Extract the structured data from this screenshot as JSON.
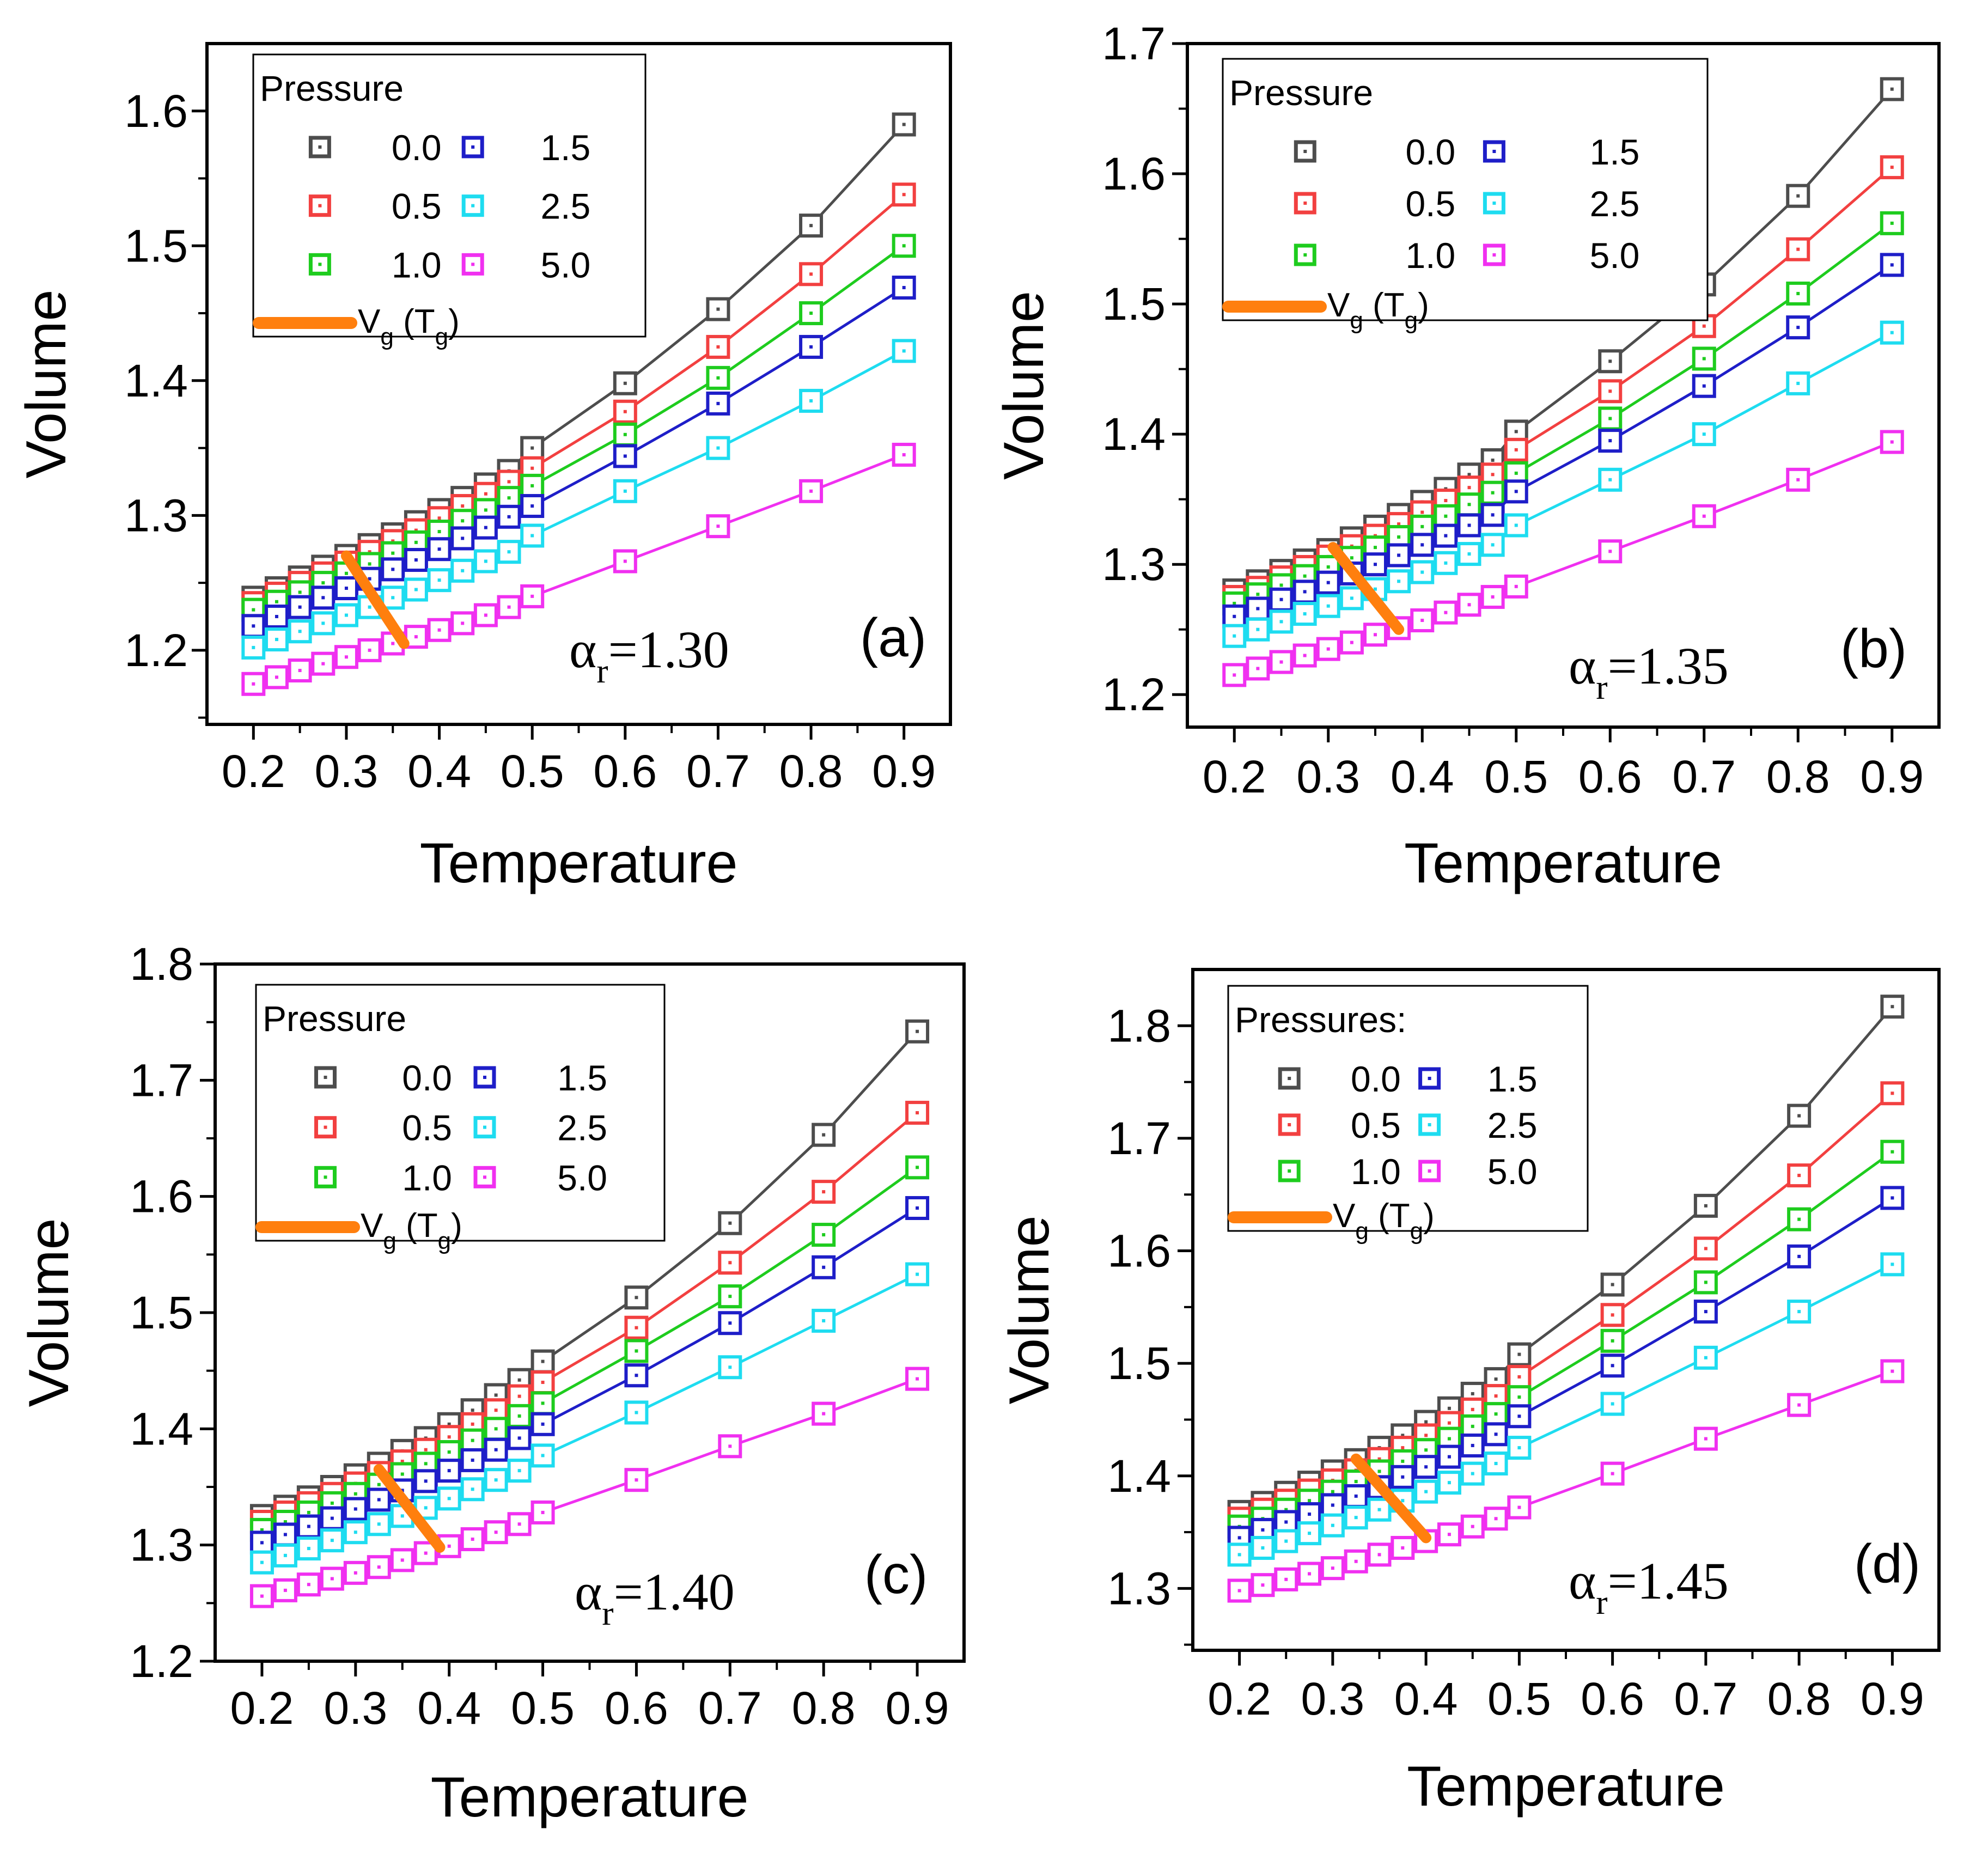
{
  "figure": {
    "series_colors": [
      "#4d4d4d",
      "#f24040",
      "#1ecc1e",
      "#1e1ec8",
      "#1edcf0",
      "#f030f0"
    ],
    "tg_color": "#ff7f0e"
  },
  "chart_data": [
    {
      "type": "line",
      "panel": "(a)",
      "alpha_label": "α",
      "alpha_sub": "r",
      "alpha_value": "=1.30",
      "xlabel": "Temperature",
      "ylabel": "Volume",
      "xlim": [
        0.15,
        0.95
      ],
      "ylim": [
        1.145,
        1.65
      ],
      "xticks": [
        "0.2",
        "0.3",
        "0.4",
        "0.5",
        "0.6",
        "0.7",
        "0.8",
        "0.9"
      ],
      "yticks": [
        "1.2",
        "1.3",
        "1.4",
        "1.5",
        "1.6"
      ],
      "legend_title": "Pressure",
      "tg_label": "V",
      "tg_sub1": "g",
      "tg_mid": " (T",
      "tg_sub2": "g",
      "tg_end": ")",
      "x": [
        0.2,
        0.225,
        0.25,
        0.275,
        0.3,
        0.325,
        0.35,
        0.375,
        0.4,
        0.425,
        0.45,
        0.475,
        0.5,
        0.6,
        0.7,
        0.8,
        0.9
      ],
      "series": [
        {
          "name": "0.0",
          "values": [
            1.239,
            1.246,
            1.254,
            1.262,
            1.27,
            1.278,
            1.286,
            1.295,
            1.304,
            1.313,
            1.323,
            1.333,
            1.35,
            1.398,
            1.453,
            1.515,
            1.59
          ]
        },
        {
          "name": "0.5",
          "values": [
            1.235,
            1.242,
            1.25,
            1.257,
            1.265,
            1.273,
            1.281,
            1.289,
            1.298,
            1.307,
            1.316,
            1.325,
            1.335,
            1.377,
            1.425,
            1.479,
            1.538
          ]
        },
        {
          "name": "1.0",
          "values": [
            1.23,
            1.236,
            1.243,
            1.25,
            1.257,
            1.264,
            1.272,
            1.28,
            1.288,
            1.296,
            1.304,
            1.313,
            1.322,
            1.36,
            1.402,
            1.45,
            1.5
          ]
        },
        {
          "name": "1.5",
          "values": [
            1.218,
            1.225,
            1.232,
            1.239,
            1.246,
            1.253,
            1.26,
            1.267,
            1.275,
            1.283,
            1.291,
            1.299,
            1.307,
            1.344,
            1.383,
            1.425,
            1.469
          ]
        },
        {
          "name": "2.5",
          "values": [
            1.202,
            1.208,
            1.214,
            1.22,
            1.226,
            1.232,
            1.239,
            1.245,
            1.252,
            1.259,
            1.266,
            1.273,
            1.285,
            1.318,
            1.35,
            1.385,
            1.422
          ]
        },
        {
          "name": "5.0",
          "values": [
            1.175,
            1.18,
            1.185,
            1.19,
            1.195,
            1.2,
            1.205,
            1.21,
            1.215,
            1.22,
            1.226,
            1.232,
            1.24,
            1.266,
            1.292,
            1.318,
            1.345
          ]
        }
      ],
      "tg_line": {
        "x": [
          0.3,
          0.362
        ],
        "y": [
          1.27,
          1.205
        ]
      }
    },
    {
      "type": "line",
      "panel": "(b)",
      "alpha_label": "α",
      "alpha_sub": "r",
      "alpha_value": "=1.35",
      "xlabel": "Temperature",
      "ylabel": "Volume",
      "xlim": [
        0.15,
        0.95
      ],
      "ylim": [
        1.175,
        1.7
      ],
      "xticks": [
        "0.2",
        "0.3",
        "0.4",
        "0.5",
        "0.6",
        "0.7",
        "0.8",
        "0.9"
      ],
      "yticks": [
        "1.2",
        "1.3",
        "1.4",
        "1.5",
        "1.6",
        "1.7"
      ],
      "legend_title": "Pressure",
      "tg_label": "V",
      "tg_sub1": "g",
      "tg_mid": " (T",
      "tg_sub2": "g",
      "tg_end": ")",
      "x": [
        0.2,
        0.225,
        0.25,
        0.275,
        0.3,
        0.325,
        0.35,
        0.375,
        0.4,
        0.425,
        0.45,
        0.475,
        0.5,
        0.6,
        0.7,
        0.8,
        0.9
      ],
      "series": [
        {
          "name": "0.0",
          "values": [
            1.28,
            1.287,
            1.295,
            1.303,
            1.311,
            1.32,
            1.329,
            1.338,
            1.348,
            1.358,
            1.369,
            1.38,
            1.402,
            1.456,
            1.515,
            1.583,
            1.665
          ]
        },
        {
          "name": "0.5",
          "values": [
            1.275,
            1.282,
            1.29,
            1.298,
            1.306,
            1.314,
            1.322,
            1.331,
            1.34,
            1.349,
            1.359,
            1.369,
            1.388,
            1.433,
            1.483,
            1.542,
            1.605
          ]
        },
        {
          "name": "1.0",
          "values": [
            1.27,
            1.277,
            1.284,
            1.291,
            1.298,
            1.305,
            1.313,
            1.321,
            1.329,
            1.337,
            1.346,
            1.355,
            1.37,
            1.412,
            1.458,
            1.508,
            1.562
          ]
        },
        {
          "name": "1.5",
          "values": [
            1.26,
            1.266,
            1.273,
            1.279,
            1.286,
            1.293,
            1.3,
            1.307,
            1.315,
            1.322,
            1.33,
            1.338,
            1.356,
            1.395,
            1.437,
            1.482,
            1.53
          ]
        },
        {
          "name": "2.5",
          "values": [
            1.245,
            1.25,
            1.256,
            1.262,
            1.268,
            1.274,
            1.281,
            1.287,
            1.294,
            1.301,
            1.308,
            1.315,
            1.33,
            1.365,
            1.4,
            1.439,
            1.478
          ]
        },
        {
          "name": "5.0",
          "values": [
            1.215,
            1.22,
            1.225,
            1.23,
            1.235,
            1.24,
            1.246,
            1.251,
            1.257,
            1.263,
            1.269,
            1.275,
            1.283,
            1.31,
            1.337,
            1.365,
            1.394
          ]
        }
      ],
      "tg_line": {
        "x": [
          0.305,
          0.375
        ],
        "y": [
          1.313,
          1.25
        ]
      }
    },
    {
      "type": "line",
      "panel": "(c)",
      "alpha_label": "α",
      "alpha_sub": "r",
      "alpha_value": "=1.40",
      "xlabel": "Temperature",
      "ylabel": "Volume",
      "xlim": [
        0.15,
        0.95
      ],
      "ylim": [
        1.2,
        1.8
      ],
      "xticks": [
        "0.2",
        "0.3",
        "0.4",
        "0.5",
        "0.6",
        "0.7",
        "0.8",
        "0.9"
      ],
      "yticks": [
        "1.2",
        "1.3",
        "1.4",
        "1.5",
        "1.6",
        "1.7",
        "1.8"
      ],
      "legend_title": "Pressure",
      "tg_label": "V",
      "tg_sub1": "g",
      "tg_mid": " (T",
      "tg_sub2": "g",
      "tg_end": ")",
      "x": [
        0.2,
        0.225,
        0.25,
        0.275,
        0.3,
        0.325,
        0.35,
        0.375,
        0.4,
        0.425,
        0.45,
        0.475,
        0.5,
        0.6,
        0.7,
        0.8,
        0.9
      ],
      "series": [
        {
          "name": "0.0",
          "values": [
            1.325,
            1.333,
            1.341,
            1.35,
            1.36,
            1.37,
            1.381,
            1.392,
            1.404,
            1.416,
            1.429,
            1.442,
            1.458,
            1.513,
            1.577,
            1.653,
            1.742
          ]
        },
        {
          "name": "0.5",
          "values": [
            1.32,
            1.328,
            1.336,
            1.344,
            1.353,
            1.362,
            1.372,
            1.382,
            1.393,
            1.404,
            1.416,
            1.428,
            1.44,
            1.487,
            1.543,
            1.604,
            1.672
          ]
        },
        {
          "name": "1.0",
          "values": [
            1.313,
            1.32,
            1.328,
            1.336,
            1.344,
            1.352,
            1.361,
            1.37,
            1.38,
            1.39,
            1.4,
            1.411,
            1.422,
            1.467,
            1.514,
            1.567,
            1.625
          ]
        },
        {
          "name": "1.5",
          "values": [
            1.302,
            1.309,
            1.316,
            1.323,
            1.331,
            1.339,
            1.347,
            1.355,
            1.364,
            1.373,
            1.382,
            1.392,
            1.404,
            1.446,
            1.491,
            1.539,
            1.59
          ]
        },
        {
          "name": "2.5",
          "values": [
            1.285,
            1.291,
            1.297,
            1.304,
            1.311,
            1.318,
            1.325,
            1.332,
            1.34,
            1.348,
            1.356,
            1.364,
            1.377,
            1.414,
            1.453,
            1.493,
            1.533
          ]
        },
        {
          "name": "5.0",
          "values": [
            1.256,
            1.261,
            1.266,
            1.271,
            1.276,
            1.281,
            1.287,
            1.293,
            1.299,
            1.305,
            1.311,
            1.318,
            1.328,
            1.356,
            1.385,
            1.413,
            1.443
          ]
        }
      ],
      "tg_line": {
        "x": [
          0.325,
          0.39
        ],
        "y": [
          1.365,
          1.298
        ]
      }
    },
    {
      "type": "line",
      "panel": "(d)",
      "alpha_label": "α",
      "alpha_sub": "r",
      "alpha_value": "=1.45",
      "xlabel": "Temperature",
      "ylabel": "Volume",
      "xlim": [
        0.15,
        0.95
      ],
      "ylim": [
        1.245,
        1.85
      ],
      "xticks": [
        "0.2",
        "0.3",
        "0.4",
        "0.5",
        "0.6",
        "0.7",
        "0.8",
        "0.9"
      ],
      "yticks": [
        "1.3",
        "1.4",
        "1.5",
        "1.6",
        "1.7",
        "1.8"
      ],
      "legend_title": "Pressures:",
      "tg_label": "V",
      "tg_sub1": "g",
      "tg_mid": " (T",
      "tg_sub2": "g",
      "tg_end": ")",
      "x": [
        0.2,
        0.225,
        0.25,
        0.275,
        0.3,
        0.325,
        0.35,
        0.375,
        0.4,
        0.425,
        0.45,
        0.475,
        0.5,
        0.6,
        0.7,
        0.8,
        0.9
      ],
      "series": [
        {
          "name": "0.0",
          "values": [
            1.368,
            1.376,
            1.385,
            1.394,
            1.404,
            1.414,
            1.425,
            1.436,
            1.448,
            1.46,
            1.473,
            1.486,
            1.508,
            1.57,
            1.64,
            1.72,
            1.817
          ]
        },
        {
          "name": "0.5",
          "values": [
            1.362,
            1.37,
            1.378,
            1.387,
            1.396,
            1.405,
            1.415,
            1.425,
            1.436,
            1.447,
            1.459,
            1.471,
            1.488,
            1.543,
            1.602,
            1.667,
            1.74
          ]
        },
        {
          "name": "1.0",
          "values": [
            1.355,
            1.362,
            1.37,
            1.378,
            1.386,
            1.395,
            1.404,
            1.413,
            1.423,
            1.433,
            1.444,
            1.455,
            1.47,
            1.52,
            1.572,
            1.628,
            1.688
          ]
        },
        {
          "name": "1.5",
          "values": [
            1.345,
            1.352,
            1.359,
            1.366,
            1.374,
            1.382,
            1.39,
            1.399,
            1.408,
            1.417,
            1.427,
            1.437,
            1.453,
            1.498,
            1.546,
            1.595,
            1.647
          ]
        },
        {
          "name": "2.5",
          "values": [
            1.33,
            1.336,
            1.342,
            1.349,
            1.356,
            1.363,
            1.37,
            1.378,
            1.386,
            1.394,
            1.402,
            1.411,
            1.425,
            1.464,
            1.505,
            1.546,
            1.588
          ]
        },
        {
          "name": "5.0",
          "values": [
            1.298,
            1.303,
            1.308,
            1.313,
            1.318,
            1.324,
            1.33,
            1.336,
            1.342,
            1.348,
            1.355,
            1.362,
            1.372,
            1.402,
            1.433,
            1.463,
            1.493
          ]
        }
      ],
      "tg_line": {
        "x": [
          0.325,
          0.4
        ],
        "y": [
          1.415,
          1.345
        ]
      }
    }
  ]
}
